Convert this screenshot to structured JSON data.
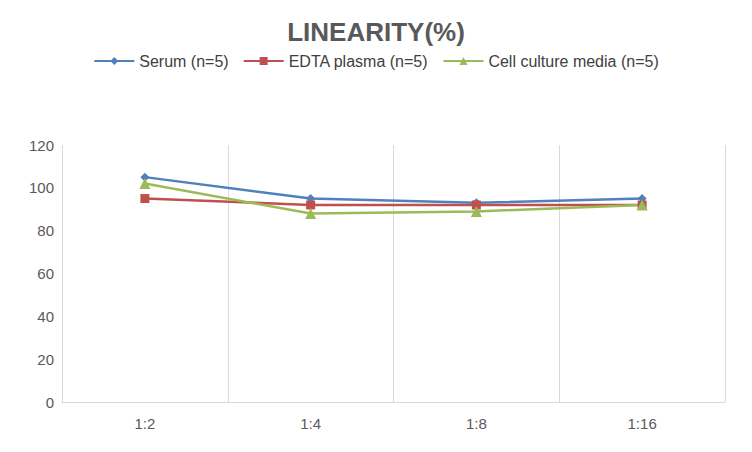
{
  "chart_data": {
    "type": "line",
    "title": "LINEARITY(%)",
    "categories": [
      "1:2",
      "1:4",
      "1:8",
      "1:16"
    ],
    "series": [
      {
        "name": "Serum (n=5)",
        "color": "#4f81bd",
        "marker": "diamond",
        "values": [
          105,
          95,
          93,
          95
        ]
      },
      {
        "name": "EDTA plasma (n=5)",
        "color": "#c0504d",
        "marker": "square",
        "values": [
          95,
          92,
          92,
          92
        ]
      },
      {
        "name": "Cell culture media (n=5)",
        "color": "#9bbb59",
        "marker": "triangle",
        "values": [
          102,
          88,
          89,
          92
        ]
      }
    ],
    "ylim": [
      0,
      120
    ],
    "yticks": [
      0,
      20,
      40,
      60,
      80,
      100,
      120
    ],
    "grid": true,
    "legend": "top"
  }
}
